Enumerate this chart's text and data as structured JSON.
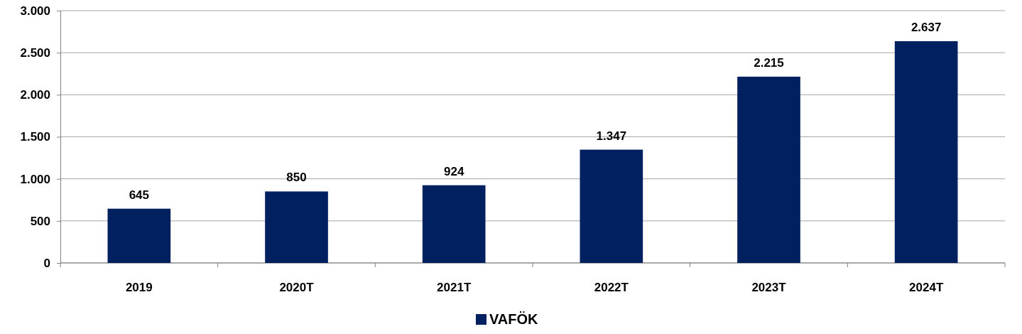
{
  "chart_data": {
    "type": "bar",
    "categories": [
      "2019",
      "2020T",
      "2021T",
      "2022T",
      "2023T",
      "2024T"
    ],
    "series": [
      {
        "name": "VAFÖK",
        "color": "#002060",
        "values": [
          645,
          850,
          924,
          1347,
          2215,
          2637
        ],
        "value_labels": [
          "645",
          "850",
          "924",
          "1.347",
          "2.215",
          "2.637"
        ]
      }
    ],
    "ylim": [
      0,
      3000
    ],
    "yticks": [
      {
        "value": 0,
        "label": "0"
      },
      {
        "value": 500,
        "label": "500"
      },
      {
        "value": 1000,
        "label": "1.000"
      },
      {
        "value": 1500,
        "label": "1.500"
      },
      {
        "value": 2000,
        "label": "2.000"
      },
      {
        "value": 2500,
        "label": "2.500"
      },
      {
        "value": 3000,
        "label": "3.000"
      }
    ],
    "grid": "y",
    "legend": "bottom"
  }
}
